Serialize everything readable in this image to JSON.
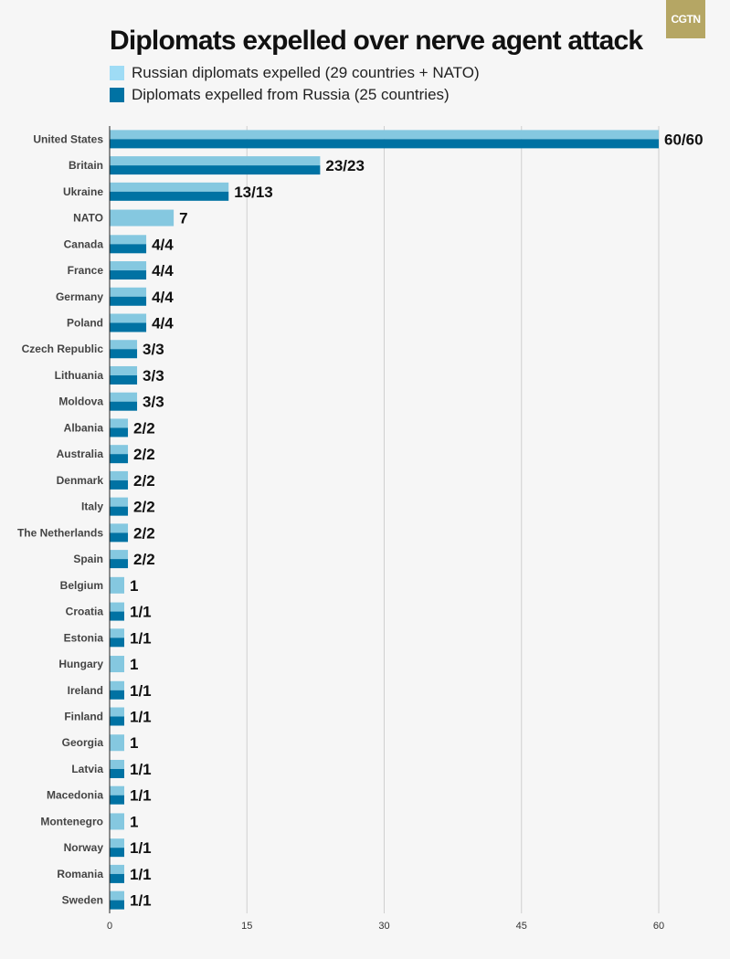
{
  "logo": "CGTN",
  "chart_data": {
    "type": "bar",
    "orientation": "horizontal",
    "title": "Diplomats expelled over nerve agent attack",
    "series": [
      {
        "name": "Russian diplomats expelled (29 countries + NATO)",
        "color": "#85c8e0",
        "values": [
          60,
          23,
          13,
          7,
          4,
          4,
          4,
          4,
          3,
          3,
          3,
          2,
          2,
          2,
          2,
          2,
          2,
          1,
          1,
          1,
          1,
          1,
          1,
          1,
          1,
          1,
          1,
          1,
          1,
          1
        ]
      },
      {
        "name": "Diplomats expelled from Russia (25 countries)",
        "color": "#0072a3",
        "values": [
          60,
          23,
          13,
          null,
          4,
          4,
          4,
          4,
          3,
          3,
          3,
          2,
          2,
          2,
          2,
          2,
          2,
          null,
          1,
          1,
          null,
          1,
          1,
          null,
          1,
          1,
          null,
          1,
          1,
          1
        ]
      }
    ],
    "categories": [
      "United States",
      "Britain",
      "Ukraine",
      "NATO",
      "Canada",
      "France",
      "Germany",
      "Poland",
      "Czech Republic",
      "Lithuania",
      "Moldova",
      "Albania",
      "Australia",
      "Denmark",
      "Italy",
      "The Netherlands",
      "Spain",
      "Belgium",
      "Croatia",
      "Estonia",
      "Hungary",
      "Ireland",
      "Finland",
      "Georgia",
      "Latvia",
      "Macedonia",
      "Montenegro",
      "Norway",
      "Romania",
      "Sweden"
    ],
    "data_labels": [
      "60/60",
      "23/23",
      "13/13",
      "7",
      "4/4",
      "4/4",
      "4/4",
      "4/4",
      "3/3",
      "3/3",
      "3/3",
      "2/2",
      "2/2",
      "2/2",
      "2/2",
      "2/2",
      "2/2",
      "1",
      "1/1",
      "1/1",
      "1",
      "1/1",
      "1/1",
      "1",
      "1/1",
      "1/1",
      "1",
      "1/1",
      "1/1",
      "1/1"
    ],
    "xlim": [
      0,
      60
    ],
    "xticks": [
      "0",
      "15",
      "30",
      "45",
      "60"
    ],
    "grid": true,
    "legend": "top-left"
  }
}
